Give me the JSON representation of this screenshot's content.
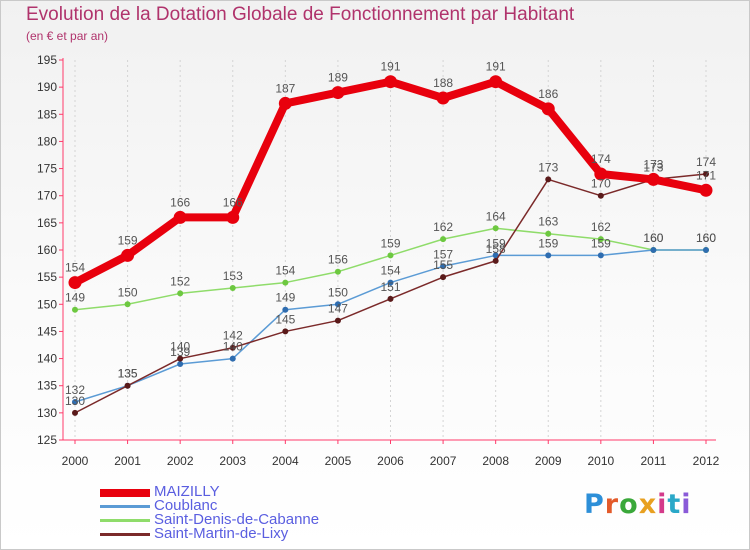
{
  "header": {
    "title": "Evolution de la Dotation Globale de Fonctionnement par Habitant",
    "subtitle": "(en € et par an)"
  },
  "chart_data": {
    "type": "line",
    "title": "Evolution de la Dotation Globale de Fonctionnement par Habitant",
    "subtitle": "(en € et par an)",
    "xlabel": "",
    "ylabel": "",
    "x": [
      2000,
      2001,
      2002,
      2003,
      2004,
      2005,
      2006,
      2007,
      2008,
      2009,
      2010,
      2011,
      2012
    ],
    "ylim": [
      125,
      195
    ],
    "yticks": [
      125,
      130,
      135,
      140,
      145,
      150,
      155,
      160,
      165,
      170,
      175,
      180,
      185,
      190,
      195
    ],
    "grid": "vertical dashed",
    "legend_position": "bottom-left",
    "series": [
      {
        "name": "MAIZILLY",
        "color": "#e8000d",
        "values": [
          154,
          159,
          166,
          166,
          187,
          189,
          191,
          188,
          191,
          186,
          174,
          173,
          171
        ]
      },
      {
        "name": "Coublanc",
        "color": "#5b9bd5",
        "values": [
          132,
          135,
          139,
          140,
          149,
          150,
          154,
          157,
          159,
          159,
          159,
          160,
          160
        ]
      },
      {
        "name": "Saint-Denis-de-Cabanne",
        "color": "#8fdc6a",
        "values": [
          149,
          150,
          152,
          153,
          154,
          156,
          159,
          162,
          164,
          163,
          162,
          160,
          160
        ]
      },
      {
        "name": "Saint-Martin-de-Lixy",
        "color": "#7b2a2a",
        "values": [
          130,
          135,
          140,
          142,
          145,
          147,
          151,
          155,
          158,
          173,
          170,
          173,
          174
        ]
      }
    ]
  },
  "logo": {
    "text": "Proxiti"
  }
}
